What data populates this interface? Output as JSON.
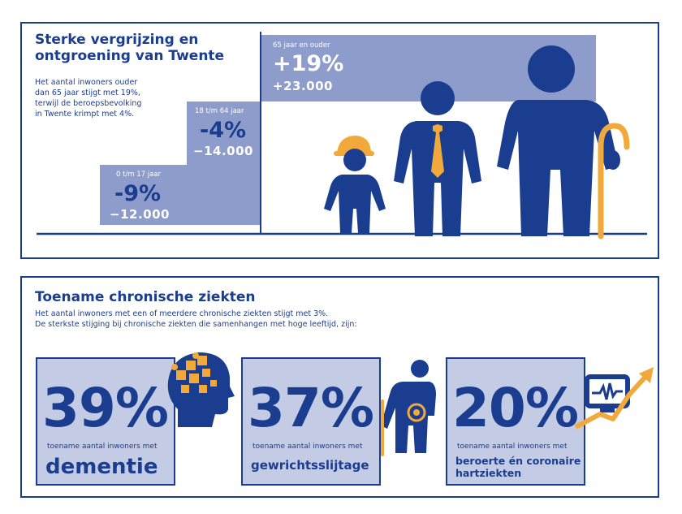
{
  "top": {
    "title_line1": "Sterke vergrijzing en",
    "title_line2": "ontgroening van Twente",
    "intro_lines": [
      "Het aantal inwoners ouder",
      "dan 65 jaar stijgt met 19%,",
      "terwijl de beroepsbevolking",
      "in Twente krimpt met 4%."
    ],
    "groups": [
      {
        "label": "0 t/m 17 jaar",
        "percent": "-9%",
        "absolute": "−12.000"
      },
      {
        "label": "18 t/m 64 jaar",
        "percent": "-4%",
        "absolute": "−14.000"
      },
      {
        "label": "65 jaar en ouder",
        "percent": "+19%",
        "absolute": "+23.000"
      }
    ],
    "colors": {
      "dark_blue": "#1b3d8f",
      "block": "#8e9ccb",
      "accent": "#f2a93b"
    },
    "icons": [
      "child-icon",
      "adult-icon",
      "elderly-icon"
    ]
  },
  "bottom": {
    "title": "Toename chronische ziekten",
    "intro_lines": [
      "Het aantal inwoners met een of meerdere chronische ziekten stijgt met 3%.",
      "De sterkste stijging bij chronische ziekten die samenhangen met hoge leeftijd, zijn:"
    ],
    "stats": [
      {
        "percent": "39%",
        "caption": "toename aantal inwoners met",
        "disease": "dementie",
        "icon": "brain-puzzle-icon"
      },
      {
        "percent": "37%",
        "caption": "toename aantal inwoners met",
        "disease": "gewrichtsslijtage",
        "icon": "joint-pain-icon"
      },
      {
        "percent": "20%",
        "caption": "toename aantal inwoners met",
        "disease_line1": "beroerte én coronaire",
        "disease_line2": "hartziekten",
        "icon": "heart-monitor-icon"
      }
    ],
    "colors": {
      "box": "#c4cbe5",
      "border": "#1b3d8f",
      "accent": "#f2a93b"
    }
  }
}
